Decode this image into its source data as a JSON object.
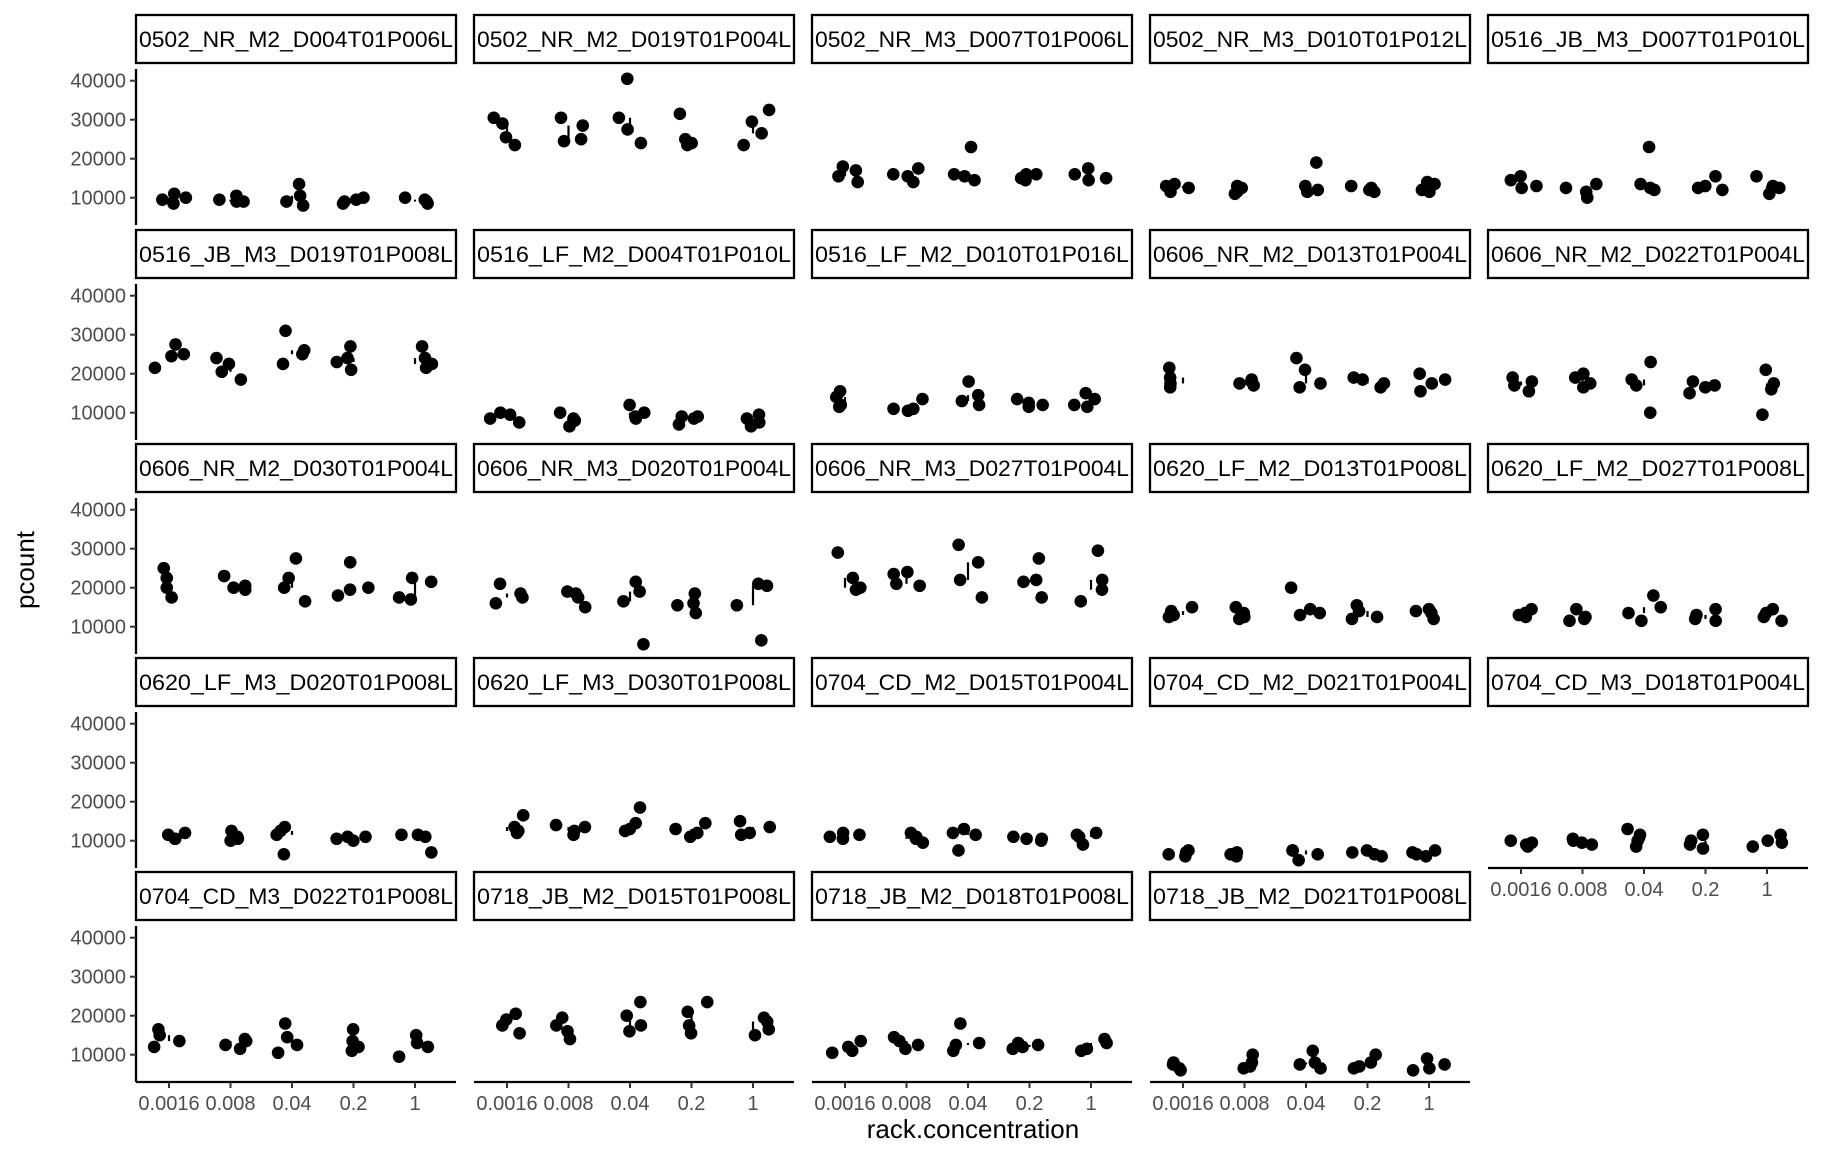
{
  "chart_data": {
    "type": "scatter",
    "facet": "wrap",
    "xlabel": "rack.concentration",
    "ylabel": "pcount",
    "x_categories": [
      "0.0016",
      "0.008",
      "0.04",
      "0.2",
      "1"
    ],
    "y_ticks": [
      10000,
      20000,
      30000,
      40000
    ],
    "y_tick_labels": [
      "10000",
      "20000",
      "30000",
      "40000"
    ],
    "ylim": [
      3000,
      43000
    ],
    "grid": false,
    "legend": "none",
    "panels": [
      {
        "title": "0502_NR_M2_D004T01P006L",
        "values": [
          [
            11000,
            9500,
            8500,
            10000
          ],
          [
            9000,
            10500,
            9500,
            9000
          ],
          [
            13500,
            8000,
            10500,
            9000
          ],
          [
            10000,
            8500,
            9500,
            9000
          ],
          [
            10000,
            9500,
            8500,
            9000
          ]
        ]
      },
      {
        "title": "0502_NR_M2_D019T01P004L",
        "values": [
          [
            30500,
            25500,
            23500,
            29000
          ],
          [
            30500,
            24500,
            28500,
            25000
          ],
          [
            40500,
            27500,
            24000,
            30500
          ],
          [
            31500,
            25000,
            23500,
            24000
          ],
          [
            32500,
            29500,
            26500,
            23500
          ]
        ]
      },
      {
        "title": "0502_NR_M3_D007T01P006L",
        "values": [
          [
            18000,
            14000,
            17000,
            15500
          ],
          [
            15500,
            17500,
            14000,
            16000
          ],
          [
            23000,
            16000,
            14500,
            15500
          ],
          [
            16000,
            15000,
            14500,
            16000
          ],
          [
            17500,
            15000,
            14500,
            16000
          ]
        ]
      },
      {
        "title": "0502_NR_M3_D010T01P012L",
        "values": [
          [
            13500,
            11500,
            12500,
            13000
          ],
          [
            13000,
            11500,
            12500,
            11000
          ],
          [
            19000,
            13000,
            11500,
            12000
          ],
          [
            12500,
            11500,
            13000,
            12000
          ],
          [
            14000,
            11500,
            13500,
            12000
          ]
        ]
      },
      {
        "title": "0516_JB_M3_D007T01P010L",
        "values": [
          [
            15500,
            13000,
            14500,
            12500
          ],
          [
            13500,
            11500,
            12500,
            10000
          ],
          [
            23000,
            13500,
            12000,
            12500
          ],
          [
            12500,
            15500,
            12000,
            13000
          ],
          [
            15500,
            11000,
            13000,
            12500
          ]
        ]
      },
      {
        "title": "0516_JB_M3_D019T01P008L",
        "values": [
          [
            24500,
            27500,
            21500,
            25000
          ],
          [
            24000,
            20500,
            22500,
            18500
          ],
          [
            31000,
            26000,
            22500,
            25000
          ],
          [
            27000,
            21000,
            23000,
            24000
          ],
          [
            27000,
            21500,
            24000,
            22500
          ]
        ]
      },
      {
        "title": "0516_LF_M2_D004T01P010L",
        "values": [
          [
            9500,
            7500,
            10000,
            8500
          ],
          [
            10000,
            6500,
            8500,
            8000
          ],
          [
            8500,
            12000,
            9000,
            10000
          ],
          [
            9000,
            7000,
            8500,
            9000
          ],
          [
            9500,
            6500,
            8500,
            7500
          ]
        ]
      },
      {
        "title": "0516_LF_M2_D010T01P016L",
        "values": [
          [
            15500,
            12000,
            14000,
            11500
          ],
          [
            11000,
            10500,
            13500,
            11000
          ],
          [
            18000,
            12000,
            14500,
            13000
          ],
          [
            12500,
            11500,
            13500,
            12000
          ],
          [
            15000,
            12000,
            13500,
            11500
          ]
        ]
      },
      {
        "title": "0606_NR_M2_D013T01P004L",
        "values": [
          [
            21500,
            17500,
            19000,
            16500
          ],
          [
            17000,
            18500,
            18000,
            17500
          ],
          [
            24000,
            21000,
            17500,
            16500
          ],
          [
            19000,
            16500,
            18500,
            17500
          ],
          [
            20000,
            15500,
            17500,
            18500
          ]
        ]
      },
      {
        "title": "0606_NR_M2_D022T01P004L",
        "values": [
          [
            19000,
            15500,
            17000,
            18000
          ],
          [
            19000,
            16500,
            17500,
            20000
          ],
          [
            23000,
            10000,
            17000,
            18500
          ],
          [
            17000,
            15000,
            18000,
            16500
          ],
          [
            21000,
            9500,
            17500,
            16000
          ]
        ]
      },
      {
        "title": "0606_NR_M2_D030T01P004L",
        "values": [
          [
            17500,
            25000,
            20000,
            22500
          ],
          [
            20000,
            23000,
            19500,
            20500
          ],
          [
            27500,
            22500,
            16500,
            20000
          ],
          [
            18000,
            26500,
            19500,
            20000
          ],
          [
            21500,
            17500,
            22500,
            17000
          ]
        ]
      },
      {
        "title": "0606_NR_M3_D020T01P004L",
        "values": [
          [
            16000,
            18500,
            21000,
            17500
          ],
          [
            18500,
            15000,
            17500,
            19000
          ],
          [
            21500,
            5500,
            16500,
            19000
          ],
          [
            18500,
            13500,
            16000,
            15500
          ],
          [
            20500,
            6500,
            15500,
            21000
          ]
        ]
      },
      {
        "title": "0606_NR_M3_D027T01P004L",
        "values": [
          [
            29000,
            19500,
            22500,
            20000
          ],
          [
            24000,
            20500,
            21000,
            23500
          ],
          [
            31000,
            17500,
            26500,
            22000
          ],
          [
            21500,
            17500,
            27500,
            22000
          ],
          [
            29500,
            16500,
            22000,
            19500
          ]
        ]
      },
      {
        "title": "0620_LF_M2_D013T01P008L",
        "values": [
          [
            15000,
            13000,
            14000,
            12500
          ],
          [
            15000,
            12000,
            13500,
            12500
          ],
          [
            20000,
            13000,
            14500,
            13500
          ],
          [
            15500,
            12000,
            14000,
            12500
          ],
          [
            14500,
            12000,
            13500,
            14000
          ]
        ]
      },
      {
        "title": "0620_LF_M2_D027T01P008L",
        "values": [
          [
            14500,
            13000,
            12500,
            13500
          ],
          [
            14500,
            11500,
            12500,
            12000
          ],
          [
            18000,
            11500,
            13500,
            15000
          ],
          [
            14500,
            11500,
            13000,
            12000
          ],
          [
            14500,
            11500,
            12500,
            13500
          ]
        ]
      },
      {
        "title": "0620_LF_M3_D020T01P008L",
        "values": [
          [
            12000,
            10500,
            11500,
            10500
          ],
          [
            12500,
            10000,
            11000,
            10500
          ],
          [
            13500,
            6500,
            11500,
            12500
          ],
          [
            11000,
            10000,
            11000,
            10500
          ],
          [
            11500,
            7000,
            11000,
            11500
          ]
        ]
      },
      {
        "title": "0620_LF_M3_D030T01P008L",
        "values": [
          [
            16500,
            12000,
            13500,
            12500
          ],
          [
            13500,
            11500,
            12500,
            14000
          ],
          [
            18500,
            12500,
            14500,
            13000
          ],
          [
            14500,
            11000,
            13000,
            12000
          ],
          [
            15000,
            11500,
            13500,
            12000
          ]
        ]
      },
      {
        "title": "0704_CD_M2_D015T01P004L",
        "values": [
          [
            12000,
            11000,
            11500,
            10500
          ],
          [
            12000,
            9500,
            11000,
            10500
          ],
          [
            13000,
            7500,
            11500,
            12000
          ],
          [
            11000,
            10000,
            10500,
            10500
          ],
          [
            12000,
            9000,
            11000,
            11500
          ]
        ]
      },
      {
        "title": "0704_CD_M2_D021T01P004L",
        "values": [
          [
            7000,
            6000,
            7500,
            6500
          ],
          [
            7000,
            6000,
            6500,
            6500
          ],
          [
            7500,
            5000,
            6500,
            7500
          ],
          [
            7500,
            6000,
            7000,
            6500
          ],
          [
            7500,
            6000,
            7000,
            6500
          ]
        ]
      },
      {
        "title": "0704_CD_M3_D018T01P004L",
        "values": [
          [
            10000,
            8500,
            9500,
            9000
          ],
          [
            10500,
            9500,
            10000,
            9000
          ],
          [
            13000,
            8500,
            10000,
            11500
          ],
          [
            11500,
            8000,
            10000,
            9000
          ],
          [
            11500,
            8500,
            10000,
            9500
          ]
        ]
      },
      {
        "title": "0704_CD_M3_D022T01P008L",
        "values": [
          [
            13500,
            16500,
            12000,
            15000
          ],
          [
            14000,
            11500,
            12500,
            13500
          ],
          [
            18000,
            10500,
            14500,
            12500
          ],
          [
            16500,
            11000,
            13500,
            12000
          ],
          [
            15000,
            9500,
            13000,
            12000
          ]
        ]
      },
      {
        "title": "0718_JB_M2_D015T01P008L",
        "values": [
          [
            20500,
            15500,
            17500,
            19000
          ],
          [
            17500,
            14000,
            19500,
            16000
          ],
          [
            23500,
            16000,
            20000,
            17500
          ],
          [
            23500,
            15500,
            21000,
            17500
          ],
          [
            19500,
            15000,
            18500,
            16500
          ]
        ]
      },
      {
        "title": "0718_JB_M2_D018T01P008L",
        "values": [
          [
            13500,
            10500,
            12000,
            11000
          ],
          [
            13500,
            11500,
            14500,
            12500
          ],
          [
            18000,
            11000,
            12500,
            13000
          ],
          [
            13000,
            11500,
            12500,
            12000
          ],
          [
            14000,
            11000,
            13000,
            11500
          ]
        ]
      },
      {
        "title": "0718_JB_M2_D021T01P008L",
        "values": [
          [
            8000,
            6000,
            7500,
            6500
          ],
          [
            8000,
            6500,
            10000,
            7000
          ],
          [
            11000,
            6500,
            8000,
            7500
          ],
          [
            10000,
            6500,
            8000,
            7000
          ],
          [
            9000,
            6000,
            7500,
            6500
          ]
        ]
      }
    ]
  }
}
